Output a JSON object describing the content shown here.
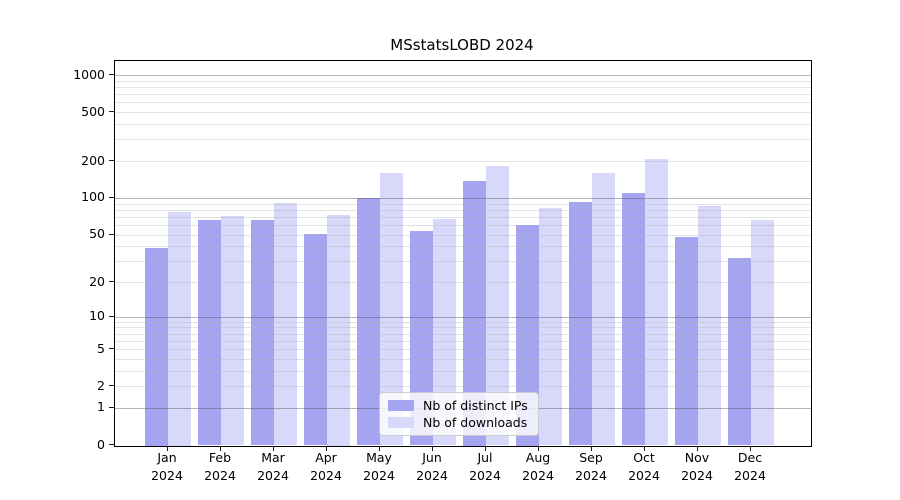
{
  "chart_data": {
    "type": "bar",
    "title": "MSstatsLOBD 2024",
    "categories": [
      "Jan 2024",
      "Feb 2024",
      "Mar 2024",
      "Apr 2024",
      "May 2024",
      "Jun 2024",
      "Jul 2024",
      "Aug 2024",
      "Sep 2024",
      "Oct 2024",
      "Nov 2024",
      "Dec 2024"
    ],
    "x_tick_months": [
      "Jan",
      "Feb",
      "Mar",
      "Apr",
      "May",
      "Jun",
      "Jul",
      "Aug",
      "Sep",
      "Oct",
      "Nov",
      "Dec"
    ],
    "x_tick_year": "2024",
    "series": [
      {
        "name": "Nb of distinct IPs",
        "color": "#a4a4f1",
        "values": [
          39,
          66,
          67,
          51,
          100,
          54,
          140,
          61,
          94,
          111,
          48,
          32
        ]
      },
      {
        "name": "Nb of downloads",
        "color": "#d8d8fa",
        "values": [
          78,
          72,
          92,
          73,
          160,
          68,
          185,
          83,
          162,
          210,
          86,
          66
        ]
      }
    ],
    "xlabel": "",
    "ylabel": "",
    "y_axis": {
      "scale": "log1p",
      "tick_labels": [
        "1000",
        "500",
        "200",
        "100",
        "50",
        "20",
        "10",
        "5",
        "2",
        "1",
        "0"
      ],
      "tick_values": [
        1000,
        500,
        200,
        100,
        50,
        20,
        10,
        5,
        2,
        1,
        0
      ],
      "major_gridline_values": [
        1000,
        100,
        10,
        1
      ],
      "ylim": [
        0,
        1300
      ]
    },
    "grid": true,
    "legend": {
      "position": "lower center"
    }
  },
  "colors": {
    "distinct_ips": "#a4a4f1",
    "downloads": "#d8d8fa",
    "spine": "#000000",
    "grid_minor": "#dddddd",
    "grid_major": "#b0b0b0",
    "background": "#ffffff"
  }
}
